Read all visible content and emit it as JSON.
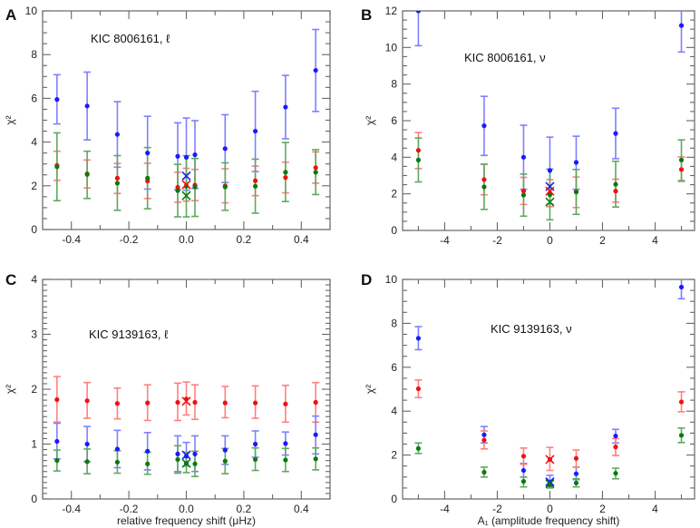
{
  "colors": {
    "blue": "#1a1aff",
    "red": "#ee1111",
    "green": "#0a7a0a",
    "bar_blue": "#7f7fff",
    "bar_red": "#ff7f7f",
    "bar_green": "#60a860"
  },
  "chart_data": [
    {
      "panel": "A",
      "type": "scatter",
      "annotation": "KIC 8006161, ℓ",
      "xlabel": "",
      "ylabel": "χ²",
      "xlim": [
        -0.5,
        0.5
      ],
      "ylim": [
        0,
        10
      ],
      "xticks": [
        -0.4,
        -0.2,
        0.0,
        0.2,
        0.4
      ],
      "xtick_labels": [
        "-0.4",
        "-0.2",
        "0.0",
        "0.2",
        "0.4"
      ],
      "xminor": 0.1,
      "yticks": [
        0,
        2,
        4,
        6,
        8,
        10
      ],
      "ytick_labels": [
        "0",
        "2",
        "4",
        "6",
        "8",
        "10"
      ],
      "yminor": 0.5,
      "x": [
        -0.45,
        -0.345,
        -0.24,
        -0.135,
        -0.03,
        0,
        0.03,
        0.135,
        0.24,
        0.345,
        0.45
      ],
      "series": [
        {
          "name": "blue",
          "y": [
            5.95,
            5.65,
            4.35,
            3.5,
            3.35,
            3.3,
            3.42,
            3.7,
            4.5,
            5.6,
            7.28
          ],
          "lo": [
            4.83,
            4.1,
            2.85,
            1.85,
            1.82,
            1.8,
            1.88,
            2.15,
            2.65,
            4.15,
            5.4
          ],
          "hi": [
            7.08,
            7.2,
            5.85,
            5.18,
            4.88,
            5.1,
            4.98,
            5.25,
            6.32,
            7.05,
            9.15
          ]
        },
        {
          "name": "red",
          "y": [
            2.93,
            2.55,
            2.35,
            2.22,
            1.93,
            2.0,
            2.03,
            2.0,
            2.23,
            2.38,
            2.83
          ],
          "lo": [
            2.25,
            1.9,
            1.65,
            1.42,
            1.25,
            1.3,
            1.32,
            1.22,
            1.55,
            1.68,
            2.12
          ],
          "hi": [
            3.58,
            3.18,
            3.02,
            3.03,
            2.62,
            2.8,
            2.75,
            2.78,
            2.9,
            3.08,
            3.55
          ]
        },
        {
          "name": "green",
          "y": [
            2.87,
            2.52,
            2.12,
            2.35,
            1.78,
            1.98,
            1.95,
            1.95,
            1.98,
            2.62,
            2.62
          ],
          "lo": [
            1.32,
            1.42,
            0.88,
            0.95,
            0.58,
            0.58,
            0.6,
            0.88,
            0.75,
            1.28,
            1.6
          ],
          "hi": [
            4.42,
            3.58,
            3.38,
            3.75,
            2.98,
            3.38,
            3.25,
            3.05,
            3.22,
            3.98,
            3.65
          ]
        }
      ],
      "crosses": [
        {
          "series": "blue",
          "x": 0,
          "y": 2.45
        },
        {
          "series": "red",
          "x": 0,
          "y": 2.05
        },
        {
          "series": "green",
          "x": 0,
          "y": 1.55
        }
      ]
    },
    {
      "panel": "B",
      "type": "scatter",
      "annotation": "KIC 8006161, ν",
      "xlabel": "",
      "ylabel": "χ²",
      "xlim": [
        -5.6,
        5.5
      ],
      "ylim": [
        0,
        12
      ],
      "xticks": [
        -4,
        -2,
        0,
        2,
        4
      ],
      "xtick_labels": [
        "-4",
        "-2",
        "0",
        "2",
        "4"
      ],
      "xminor": 1,
      "yticks": [
        0,
        2,
        4,
        6,
        8,
        10,
        12
      ],
      "ytick_labels": [
        "0",
        "2",
        "4",
        "6",
        "8",
        "10",
        "12"
      ],
      "yminor": 0.5,
      "x": [
        -5,
        -2.5,
        -1,
        0,
        1,
        2.5,
        5
      ],
      "series": [
        {
          "name": "blue",
          "y": [
            12.0,
            5.72,
            4.0,
            3.28,
            3.72,
            5.3,
            11.2
          ],
          "lo": [
            10.1,
            4.1,
            2.25,
            1.45,
            2.25,
            3.92,
            9.75
          ],
          "hi": [
            13.9,
            7.33,
            5.75,
            5.1,
            5.15,
            6.68,
            12.65
          ]
        },
        {
          "name": "red",
          "y": [
            4.38,
            2.78,
            2.15,
            2.05,
            2.12,
            2.15,
            3.33
          ],
          "lo": [
            3.38,
            1.95,
            1.42,
            1.3,
            1.25,
            1.55,
            2.68
          ],
          "hi": [
            5.35,
            3.62,
            2.9,
            2.78,
            2.92,
            2.8,
            4.02
          ]
        },
        {
          "name": "green",
          "y": [
            3.85,
            2.38,
            1.93,
            1.95,
            2.1,
            2.52,
            3.85
          ],
          "lo": [
            2.65,
            1.15,
            0.78,
            0.58,
            0.88,
            1.28,
            2.72
          ],
          "hi": [
            5.05,
            3.62,
            3.08,
            3.35,
            3.33,
            3.78,
            4.95
          ]
        }
      ],
      "crosses": [
        {
          "series": "blue",
          "x": 0,
          "y": 2.4
        },
        {
          "series": "red",
          "x": 0,
          "y": 2.15
        },
        {
          "series": "green",
          "x": 0,
          "y": 1.55
        }
      ]
    },
    {
      "panel": "C",
      "type": "scatter",
      "annotation": "KIC 9139163, ℓ",
      "xlabel": "relative frequency shift (μHz)",
      "ylabel": "χ²",
      "xlim": [
        -0.5,
        0.5
      ],
      "ylim": [
        0,
        4
      ],
      "xticks": [
        -0.4,
        -0.2,
        0.0,
        0.2,
        0.4
      ],
      "xtick_labels": [
        "-0.4",
        "-0.2",
        "0.0",
        "0.2",
        "0.4"
      ],
      "xminor": 0.1,
      "yticks": [
        0,
        1,
        2,
        3,
        4
      ],
      "ytick_labels": [
        "0",
        "1",
        "2",
        "3",
        "4"
      ],
      "yminor": 0.1,
      "x": [
        -0.45,
        -0.345,
        -0.24,
        -0.135,
        -0.03,
        0,
        0.03,
        0.135,
        0.24,
        0.345,
        0.45
      ],
      "series": [
        {
          "name": "red",
          "y": [
            1.81,
            1.79,
            1.74,
            1.75,
            1.76,
            1.82,
            1.76,
            1.75,
            1.75,
            1.73,
            1.76
          ],
          "lo": [
            1.4,
            1.47,
            1.46,
            1.43,
            1.43,
            1.53,
            1.45,
            1.48,
            1.47,
            1.4,
            1.4
          ],
          "hi": [
            2.23,
            2.12,
            2.02,
            2.08,
            2.11,
            2.13,
            2.08,
            2.05,
            2.06,
            2.07,
            2.12
          ]
        },
        {
          "name": "blue",
          "y": [
            1.05,
            1.0,
            0.91,
            0.87,
            0.82,
            0.78,
            0.82,
            0.89,
            1.0,
            1.01,
            1.17
          ],
          "lo": [
            0.73,
            0.68,
            0.57,
            0.53,
            0.5,
            0.6,
            0.5,
            0.63,
            0.76,
            0.8,
            0.82
          ],
          "hi": [
            1.38,
            1.32,
            1.25,
            1.21,
            1.15,
            1.03,
            1.15,
            1.15,
            1.24,
            1.22,
            1.51
          ]
        },
        {
          "name": "green",
          "y": [
            0.7,
            0.68,
            0.67,
            0.64,
            0.72,
            0.65,
            0.64,
            0.69,
            0.72,
            0.71,
            0.73
          ],
          "lo": [
            0.51,
            0.46,
            0.47,
            0.45,
            0.47,
            0.48,
            0.41,
            0.46,
            0.52,
            0.5,
            0.53
          ],
          "hi": [
            0.89,
            0.91,
            0.88,
            0.85,
            0.97,
            0.85,
            0.87,
            0.92,
            0.93,
            0.92,
            0.93
          ]
        }
      ],
      "crosses": [
        {
          "series": "red",
          "x": 0,
          "y": 1.78
        },
        {
          "series": "blue",
          "x": 0,
          "y": 0.8
        },
        {
          "series": "green",
          "x": 0,
          "y": 0.65
        }
      ]
    },
    {
      "panel": "D",
      "type": "scatter",
      "annotation": "KIC 9139163, ν",
      "xlabel": "A₁ (amplitude frequency shift)",
      "ylabel": "χ²",
      "xlim": [
        -5.6,
        5.5
      ],
      "ylim": [
        0,
        10
      ],
      "xticks": [
        -4,
        -2,
        0,
        2,
        4
      ],
      "xtick_labels": [
        "-4",
        "-2",
        "0",
        "2",
        "4"
      ],
      "xminor": 1,
      "yticks": [
        0,
        2,
        4,
        6,
        8,
        10
      ],
      "ytick_labels": [
        "0",
        "2",
        "4",
        "6",
        "8",
        "10"
      ],
      "yminor": 0.5,
      "x": [
        -5,
        -2.5,
        -1,
        0,
        1,
        2.5,
        5
      ],
      "series": [
        {
          "name": "blue",
          "y": [
            7.32,
            2.92,
            1.3,
            0.75,
            1.15,
            2.87,
            9.65
          ],
          "lo": [
            6.8,
            2.55,
            1.0,
            0.55,
            0.88,
            2.55,
            9.12
          ],
          "hi": [
            7.85,
            3.3,
            1.62,
            1.08,
            1.45,
            3.17,
            10.15
          ]
        },
        {
          "name": "red",
          "y": [
            5.02,
            2.68,
            1.95,
            1.8,
            1.85,
            2.37,
            4.42
          ],
          "lo": [
            4.62,
            2.28,
            1.58,
            1.3,
            1.45,
            1.98,
            3.97
          ],
          "hi": [
            5.42,
            3.1,
            2.32,
            2.35,
            2.23,
            2.75,
            4.88
          ]
        },
        {
          "name": "green",
          "y": [
            2.3,
            1.22,
            0.8,
            0.65,
            0.73,
            1.17,
            2.9
          ],
          "lo": [
            2.07,
            1.0,
            0.55,
            0.5,
            0.55,
            0.92,
            2.57
          ],
          "hi": [
            2.55,
            1.45,
            1.0,
            0.82,
            0.92,
            1.4,
            3.23
          ]
        }
      ],
      "crosses": [
        {
          "series": "red",
          "x": 0,
          "y": 1.8
        },
        {
          "series": "blue",
          "x": 0,
          "y": 0.78
        },
        {
          "series": "green",
          "x": 0,
          "y": 0.7
        }
      ]
    }
  ]
}
